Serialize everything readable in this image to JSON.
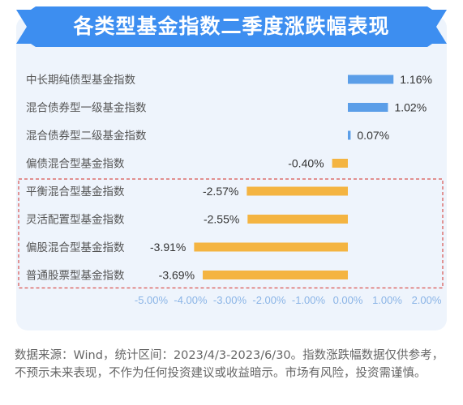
{
  "colors": {
    "banner": "#3d8ef0",
    "positive": "#5b9ee8",
    "negative": "#f4b441",
    "card": "#eef4fc",
    "highlight_border": "#d9534f",
    "text": "#555555",
    "tick": "#8ab4e6"
  },
  "title": "各类型基金指数二季度涨跌幅表现",
  "footnote": "数据来源：Wind，统计区间：2023/4/3-2023/6/30。指数涨跌幅数据仅供参考，不预示未来表现，不作为任何投资建议或收益暗示。市场有风险，投资需谨慎。",
  "chart_data": {
    "type": "bar",
    "orientation": "horizontal",
    "categories": [
      "中长期纯债型基金指数",
      "混合债券型一级基金指数",
      "混合债券型二级基金指数",
      "偏债混合型基金指数",
      "平衡混合型基金指数",
      "灵活配置型基金指数",
      "偏股混合型基金指数",
      "普通股票型基金指数"
    ],
    "values": [
      1.16,
      1.02,
      0.07,
      -0.4,
      -2.57,
      -2.55,
      -3.91,
      -3.69
    ],
    "value_labels": [
      "1.16%",
      "1.02%",
      "0.07%",
      "-0.40%",
      "-2.57%",
      "-2.55%",
      "-3.91%",
      "-3.69%"
    ],
    "xlim": [
      -5,
      2
    ],
    "xticks": [
      -5,
      -4,
      -3,
      -2,
      -1,
      0,
      1,
      2
    ],
    "xtick_labels": [
      "-5.00%",
      "-4.00%",
      "-3.00%",
      "-2.00%",
      "-1.00%",
      "0.00%",
      "1.00%",
      "2.00%"
    ],
    "highlighted_categories": [
      4,
      5,
      6,
      7
    ],
    "grid": false,
    "legend": "none"
  }
}
